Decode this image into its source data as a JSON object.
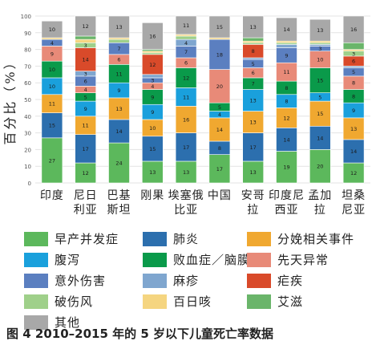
{
  "caption": "图 4 2010–2015 年的 5 岁以下儿童死亡率数据",
  "chart_data": {
    "type": "bar",
    "stacked": true,
    "ylabel": "百分比（%）",
    "ylim": [
      0,
      100
    ],
    "yticks": [
      0,
      10,
      20,
      30,
      40,
      50,
      60,
      70,
      80,
      90,
      100
    ],
    "categories": [
      [
        "印度"
      ],
      [
        "尼日",
        "利亚"
      ],
      [
        "巴基",
        "斯坦"
      ],
      [
        "刚果"
      ],
      [
        "埃塞俄",
        "比亚"
      ],
      [
        "中国"
      ],
      [
        "安哥",
        "拉"
      ],
      [
        "印度尼",
        "西亚"
      ],
      [
        "孟加",
        "拉"
      ],
      [
        "坦桑",
        "尼亚"
      ]
    ],
    "series": [
      {
        "name": "早产并发症",
        "color": "#5cb85c",
        "values": [
          27,
          12,
          24,
          13,
          13,
          17,
          13,
          19,
          20,
          12
        ],
        "labels": [
          "27",
          "12",
          "24",
          "13",
          "13",
          "17",
          "13",
          "19",
          "20",
          "12"
        ]
      },
      {
        "name": "肺炎",
        "color": "#2c6fae",
        "values": [
          15,
          17,
          14,
          15,
          17,
          8,
          17,
          14,
          14,
          14
        ],
        "labels": [
          "15",
          "17",
          "14",
          "15",
          "17",
          "8",
          "17",
          "14",
          "14",
          "14"
        ]
      },
      {
        "name": "分娩相关事件",
        "color": "#f0a830",
        "values": [
          11,
          11,
          13,
          10,
          16,
          14,
          13,
          12,
          15,
          13
        ],
        "labels": [
          "11",
          "11",
          "13",
          "10",
          "16",
          "14",
          "13",
          "12",
          "15",
          "13"
        ]
      },
      {
        "name": "腹泻",
        "color": "#1aa0dc",
        "values": [
          10,
          9,
          9,
          9,
          11,
          4,
          13,
          8,
          5,
          9
        ],
        "labels": [
          "10",
          "9",
          "9",
          "9",
          "11",
          "4",
          "13",
          "8",
          "5",
          "9"
        ]
      },
      {
        "name": "败血症／脑膜炎",
        "color": "#0a9a4a",
        "values": [
          10,
          5,
          11,
          9,
          12,
          5,
          7,
          8,
          15,
          8
        ],
        "labels": [
          "10",
          "5",
          "11",
          "9",
          "12",
          "5",
          "7",
          "8",
          "15",
          "8"
        ]
      },
      {
        "name": "先天异常",
        "color": "#e88a78",
        "values": [
          9,
          4,
          6,
          4,
          6,
          20,
          6,
          11,
          10,
          8
        ],
        "labels": [
          "9",
          "4",
          "6",
          "4",
          "6",
          "20",
          "6",
          "11",
          "10",
          "8"
        ]
      },
      {
        "name": "意外伤害",
        "color": "#5b7fc0",
        "values": [
          4,
          6,
          7,
          3,
          7,
          18,
          5,
          9,
          3,
          5
        ],
        "labels": [
          "4",
          "6",
          "7",
          "3",
          "7",
          "18",
          "5",
          "9",
          "3",
          "5"
        ]
      },
      {
        "name": "麻疹",
        "color": "#7fa6cf",
        "values": [
          0,
          3,
          0,
          2,
          4,
          0,
          1,
          2,
          1,
          1
        ],
        "labels": [
          "",
          "3",
          "",
          "",
          "4",
          "",
          "",
          "",
          "",
          ""
        ]
      },
      {
        "name": "疟疾",
        "color": "#d94a2a",
        "values": [
          0,
          14,
          0,
          12,
          0,
          0,
          8,
          0,
          0,
          6
        ],
        "labels": [
          "",
          "14",
          "",
          "12",
          "",
          "",
          "8",
          "",
          "",
          "6"
        ]
      },
      {
        "name": "破伤风",
        "color": "#9fd08a",
        "values": [
          0,
          3,
          2,
          1,
          2,
          0,
          1,
          1,
          1,
          3
        ],
        "labels": [
          "",
          "3",
          "",
          "",
          "",
          "",
          "",
          "",
          "",
          "3"
        ]
      },
      {
        "name": "百日咳",
        "color": "#f5d580",
        "values": [
          1,
          2,
          1,
          1,
          1,
          1,
          1,
          1,
          1,
          1
        ],
        "labels": [
          "",
          "",
          "",
          "",
          "",
          "",
          "",
          "",
          "",
          ""
        ]
      },
      {
        "name": "艾滋",
        "color": "#6ab56a",
        "values": [
          0,
          2,
          0,
          1,
          0,
          0,
          2,
          0,
          0,
          4
        ],
        "labels": [
          "",
          "",
          "",
          "",
          "",
          "",
          "",
          "",
          "",
          ""
        ]
      },
      {
        "name": "其他",
        "color": "#a8a8a8",
        "values": [
          10,
          12,
          13,
          16,
          11,
          15,
          13,
          14,
          13,
          16
        ],
        "labels": [
          "10",
          "12",
          "13",
          "16",
          "11",
          "15",
          "13",
          "14",
          "13",
          "16"
        ]
      }
    ],
    "legend_position": "bottom"
  }
}
